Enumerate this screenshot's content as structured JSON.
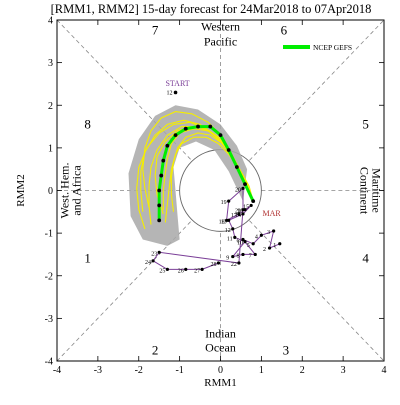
{
  "chart_data": {
    "type": "scatter",
    "title": "[RMM1, RMM2] 15-day forecast for 24Mar2018 to 07Apr2018",
    "xlabel": "RMM1",
    "ylabel": "RMM2",
    "xlim": [
      -4,
      4
    ],
    "ylim": [
      -4,
      4
    ],
    "xticks": [
      "-4",
      "-3",
      "-2",
      "-1",
      "0",
      "1",
      "2",
      "3",
      "4"
    ],
    "yticks": [
      "-4",
      "-3",
      "-2",
      "-1",
      "0",
      "1",
      "2",
      "3",
      "4"
    ],
    "grid": false,
    "legend": {
      "placement": "top-right",
      "label": "NCEP GEFS"
    },
    "phases": [
      {
        "label": "1",
        "x": -3.25,
        "y": -1.6
      },
      {
        "label": "2",
        "x": -1.6,
        "y": -3.75
      },
      {
        "label": "3",
        "x": 1.6,
        "y": -3.75
      },
      {
        "label": "4",
        "x": 3.55,
        "y": -1.6
      },
      {
        "label": "5",
        "x": 3.55,
        "y": 1.55
      },
      {
        "label": "6",
        "x": 1.55,
        "y": 3.75
      },
      {
        "label": "7",
        "x": -1.6,
        "y": 3.75
      },
      {
        "label": "8",
        "x": -3.25,
        "y": 1.55
      }
    ],
    "regions": {
      "top": [
        "Western",
        "Pacific"
      ],
      "bottom": [
        "Indian",
        "Ocean"
      ],
      "left": [
        "West. Hem.",
        "and Africa"
      ],
      "right": [
        "Maritime",
        "Continent"
      ]
    },
    "annotations": {
      "start": {
        "text": "START",
        "x": -1.05,
        "y": 2.45
      },
      "month": {
        "text": "MAR",
        "x": 1.25,
        "y": -0.6
      }
    },
    "observed": {
      "color": "#7b3f98",
      "points": [
        {
          "label": "1",
          "x": 1.45,
          "y": -1.25
        },
        {
          "label": "2",
          "x": 1.2,
          "y": -1.35
        },
        {
          "label": "3",
          "x": 1.3,
          "y": -0.95
        },
        {
          "label": "4",
          "x": 1.0,
          "y": -1.05
        },
        {
          "label": "5",
          "x": 0.8,
          "y": -1.25
        },
        {
          "label": "6",
          "x": 0.55,
          "y": -1.15
        },
        {
          "label": "7",
          "x": 0.85,
          "y": -1.5
        },
        {
          "label": "8",
          "x": 0.55,
          "y": -1.5
        },
        {
          "label": "9",
          "x": 0.3,
          "y": -1.55
        },
        {
          "label": "10",
          "x": 0.6,
          "y": -1.2
        },
        {
          "label": "11",
          "x": 0.35,
          "y": -1.1
        },
        {
          "label": "12",
          "x": 0.3,
          "y": -0.9
        },
        {
          "label": "13",
          "x": 0.2,
          "y": -0.7
        },
        {
          "label": "14",
          "x": 0.55,
          "y": -0.55
        },
        {
          "label": "15",
          "x": 0.75,
          "y": -0.35
        },
        {
          "label": "16",
          "x": 0.6,
          "y": -0.45
        },
        {
          "label": "17",
          "x": 0.45,
          "y": -0.55
        },
        {
          "label": "18",
          "x": 0.15,
          "y": -0.7
        },
        {
          "label": "19",
          "x": 0.2,
          "y": -0.25
        },
        {
          "label": "20",
          "x": 0.55,
          "y": 0.05
        },
        {
          "label": "21",
          "x": 0.55,
          "y": -0.45
        },
        {
          "label": "22",
          "x": 0.45,
          "y": -1.7
        },
        {
          "label": "23",
          "x": -1.5,
          "y": -1.45
        },
        {
          "label": "24",
          "x": -1.65,
          "y": -1.65
        },
        {
          "label": "25",
          "x": -1.3,
          "y": -1.85
        },
        {
          "label": "26",
          "x": -0.85,
          "y": -1.85
        },
        {
          "label": "27",
          "x": -0.45,
          "y": -1.85
        },
        {
          "label": "28",
          "x": -0.05,
          "y": -1.7
        }
      ]
    },
    "forecast_mean": {
      "name": "NCEP GEFS",
      "color": "#00ee00",
      "points": [
        {
          "x": 0.8,
          "y": -0.25
        },
        {
          "x": 0.6,
          "y": 0.15
        },
        {
          "x": 0.4,
          "y": 0.55
        },
        {
          "x": 0.2,
          "y": 0.95
        },
        {
          "x": 0.0,
          "y": 1.3
        },
        {
          "x": -0.25,
          "y": 1.5
        },
        {
          "x": -0.55,
          "y": 1.5
        },
        {
          "x": -0.85,
          "y": 1.45
        },
        {
          "x": -1.1,
          "y": 1.3
        },
        {
          "x": -1.3,
          "y": 1.05
        },
        {
          "x": -1.4,
          "y": 0.7
        },
        {
          "x": -1.45,
          "y": 0.35
        },
        {
          "x": -1.5,
          "y": 0.0
        },
        {
          "x": -1.5,
          "y": -0.35
        },
        {
          "x": -1.5,
          "y": -0.7
        }
      ]
    },
    "ensemble_members": [
      [
        [
          0.8,
          -0.25
        ],
        [
          0.6,
          0.2
        ],
        [
          0.35,
          0.65
        ],
        [
          0.1,
          1.05
        ],
        [
          -0.2,
          1.35
        ],
        [
          -0.55,
          1.5
        ],
        [
          -0.95,
          1.5
        ],
        [
          -1.3,
          1.3
        ],
        [
          -1.55,
          0.95
        ],
        [
          -1.7,
          0.55
        ],
        [
          -1.75,
          0.1
        ],
        [
          -1.75,
          -0.35
        ],
        [
          -1.7,
          -0.8
        ]
      ],
      [
        [
          0.8,
          -0.25
        ],
        [
          0.65,
          0.1
        ],
        [
          0.45,
          0.5
        ],
        [
          0.25,
          0.9
        ],
        [
          0.0,
          1.2
        ],
        [
          -0.3,
          1.4
        ],
        [
          -0.65,
          1.45
        ],
        [
          -1.0,
          1.35
        ],
        [
          -1.2,
          1.1
        ],
        [
          -1.3,
          0.75
        ],
        [
          -1.35,
          0.4
        ],
        [
          -1.4,
          0.0
        ],
        [
          -1.4,
          -0.45
        ]
      ],
      [
        [
          0.8,
          -0.25
        ],
        [
          0.55,
          0.25
        ],
        [
          0.3,
          0.75
        ],
        [
          0.0,
          1.15
        ],
        [
          -0.35,
          1.45
        ],
        [
          -0.75,
          1.6
        ],
        [
          -1.15,
          1.55
        ],
        [
          -1.5,
          1.35
        ],
        [
          -1.8,
          1.0
        ],
        [
          -2.0,
          0.55
        ],
        [
          -2.05,
          0.05
        ],
        [
          -2.0,
          -0.45
        ],
        [
          -1.85,
          -0.9
        ]
      ],
      [
        [
          0.8,
          -0.25
        ],
        [
          0.7,
          0.1
        ],
        [
          0.5,
          0.45
        ],
        [
          0.3,
          0.8
        ],
        [
          0.05,
          1.1
        ],
        [
          -0.25,
          1.3
        ],
        [
          -0.55,
          1.35
        ],
        [
          -0.85,
          1.25
        ],
        [
          -1.05,
          1.0
        ],
        [
          -1.15,
          0.65
        ],
        [
          -1.2,
          0.3
        ],
        [
          -1.2,
          -0.1
        ],
        [
          -1.15,
          -0.5
        ]
      ],
      [
        [
          0.8,
          -0.25
        ],
        [
          0.6,
          0.2
        ],
        [
          0.4,
          0.6
        ],
        [
          0.15,
          1.0
        ],
        [
          -0.15,
          1.3
        ],
        [
          -0.5,
          1.55
        ],
        [
          -0.9,
          1.65
        ],
        [
          -1.3,
          1.55
        ],
        [
          -1.6,
          1.3
        ],
        [
          -1.85,
          0.9
        ],
        [
          -1.95,
          0.45
        ],
        [
          -1.95,
          0.0
        ],
        [
          -1.9,
          -0.5
        ]
      ],
      [
        [
          0.8,
          -0.25
        ],
        [
          0.6,
          0.15
        ],
        [
          0.4,
          0.55
        ],
        [
          0.2,
          0.9
        ],
        [
          -0.05,
          1.25
        ],
        [
          -0.35,
          1.45
        ],
        [
          -0.7,
          1.5
        ],
        [
          -1.05,
          1.4
        ],
        [
          -1.35,
          1.15
        ],
        [
          -1.55,
          0.8
        ],
        [
          -1.6,
          0.35
        ],
        [
          -1.55,
          -0.1
        ],
        [
          -1.4,
          -0.55
        ]
      ],
      [
        [
          0.8,
          -0.25
        ],
        [
          0.55,
          0.3
        ],
        [
          0.3,
          0.8
        ],
        [
          0.05,
          1.25
        ],
        [
          -0.3,
          1.6
        ],
        [
          -0.7,
          1.8
        ],
        [
          -1.1,
          1.85
        ],
        [
          -1.45,
          1.7
        ],
        [
          -1.7,
          1.4
        ],
        [
          -1.85,
          1.0
        ],
        [
          -1.9,
          0.5
        ],
        [
          -1.85,
          0.05
        ],
        [
          -1.75,
          -0.4
        ]
      ],
      [
        [
          0.8,
          -0.25
        ],
        [
          0.65,
          0.15
        ],
        [
          0.45,
          0.5
        ],
        [
          0.2,
          0.85
        ],
        [
          -0.05,
          1.1
        ],
        [
          -0.35,
          1.25
        ],
        [
          -0.65,
          1.25
        ],
        [
          -0.95,
          1.1
        ],
        [
          -1.1,
          0.85
        ],
        [
          -1.2,
          0.5
        ],
        [
          -1.25,
          0.1
        ],
        [
          -1.3,
          -0.3
        ],
        [
          -1.35,
          -0.75
        ]
      ]
    ],
    "ensemble_spread": {
      "color": "#a8a8a8",
      "upper_x": [
        -2.25,
        -2.0,
        -1.6,
        -1.1,
        -0.55,
        0.0,
        0.4,
        0.65
      ],
      "upper_y": [
        0.4,
        1.2,
        1.75,
        2.0,
        1.9,
        1.55,
        1.05,
        0.5
      ]
    },
    "start_point": {
      "label": "12",
      "x": -1.1,
      "y": 2.3
    }
  }
}
